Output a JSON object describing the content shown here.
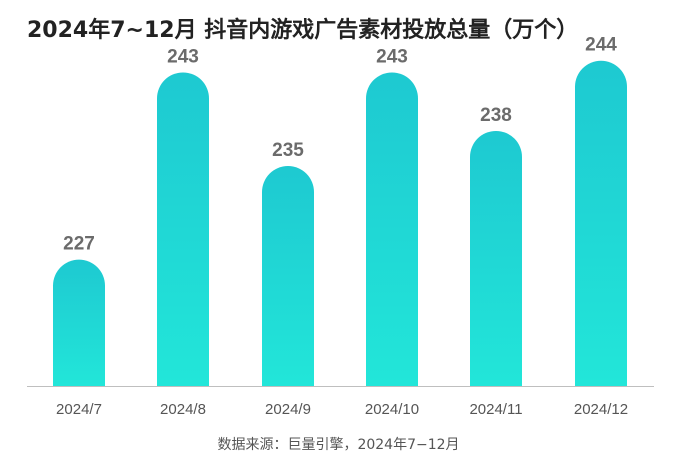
{
  "chart_data": {
    "type": "bar",
    "title": "2024年7~12月 抖音内游戏广告素材投放总量（万个）",
    "categories": [
      "2024/7",
      "2024/8",
      "2024/9",
      "2024/10",
      "2024/11",
      "2024/12"
    ],
    "values": [
      227,
      243,
      235,
      243,
      238,
      244
    ],
    "data_labels": [
      "227",
      "243",
      "235",
      "243",
      "238",
      "244"
    ],
    "source": "数据来源：巨量引擎，2024年7−12月",
    "grid": false,
    "legend": "none",
    "colors": {
      "bar_top": "#1ec9d1",
      "bar_bottom": "#22e6d9",
      "value_label": "#6b6b6b",
      "tick_label": "#555555",
      "axis": "#bfbfbf"
    }
  }
}
